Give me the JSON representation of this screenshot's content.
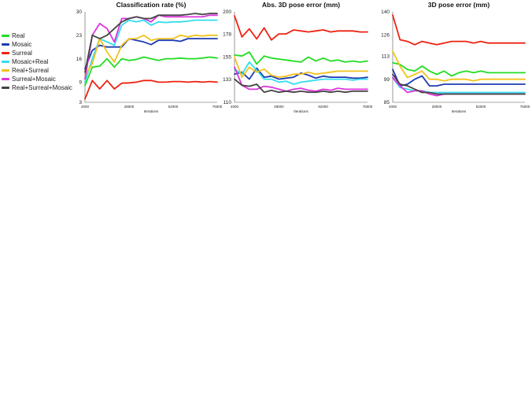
{
  "legend": [
    {
      "name": "Real",
      "color": "#22dd22"
    },
    {
      "name": "Mosaic",
      "color": "#1f3bb3"
    },
    {
      "name": "Surreal",
      "color": "#ee2211"
    },
    {
      "name": "Mosaic+Real",
      "color": "#33ddee"
    },
    {
      "name": "Real+Surreal",
      "color": "#f2c21b"
    },
    {
      "name": "Surreal+Mosaic",
      "color": "#dd33dd"
    },
    {
      "name": "Real+Surreal+Mosaic",
      "color": "#444444"
    }
  ],
  "chart_data": [
    {
      "type": "line",
      "title": "Classification rate (%)",
      "xlabel": "Iterations",
      "ylabel": "",
      "xlim": [
        4000,
        76000
      ],
      "ylim": [
        3,
        30
      ],
      "yticks": [
        3,
        9,
        16,
        23,
        30
      ],
      "xticks": [
        4000,
        28000,
        52000,
        76000
      ],
      "grid": false,
      "x": [
        4000,
        8000,
        12000,
        16000,
        20000,
        24000,
        28000,
        32000,
        36000,
        40000,
        44000,
        48000,
        52000,
        56000,
        60000,
        64000,
        68000,
        72000,
        76000
      ],
      "series": [
        {
          "name": "Real",
          "color": "#22dd22",
          "values": [
            8,
            13.5,
            13.8,
            16,
            13.5,
            16,
            15.5,
            15.8,
            16.5,
            16,
            15.5,
            16,
            16,
            16.2,
            16,
            16,
            16.2,
            16.5,
            16.2
          ]
        },
        {
          "name": "Mosaic",
          "color": "#1f3bb3",
          "values": [
            13,
            18.5,
            20,
            19.5,
            19.5,
            19.5,
            22,
            21.5,
            21,
            20.2,
            21.5,
            21.5,
            21.5,
            21.2,
            22,
            22,
            22,
            22,
            22
          ]
        },
        {
          "name": "Surreal",
          "color": "#ee2211",
          "values": [
            4,
            9.5,
            7,
            9.5,
            7,
            8.7,
            8.8,
            9,
            9.5,
            9.5,
            9,
            9,
            9.2,
            9.2,
            9,
            9.2,
            9,
            9.2,
            9
          ]
        },
        {
          "name": "Mosaic+Real",
          "color": "#33ddee",
          "values": [
            9,
            16,
            22,
            21,
            20,
            26,
            27.5,
            27,
            27.5,
            26,
            27,
            26.8,
            27,
            27,
            27.2,
            27.5,
            27.5,
            27.5,
            27.5
          ]
        },
        {
          "name": "Real+Surreal",
          "color": "#f2c21b",
          "values": [
            11,
            14.5,
            22,
            18,
            15,
            20,
            22,
            22,
            23,
            21.5,
            22,
            22,
            22,
            23,
            22.5,
            23,
            22.8,
            23,
            23
          ]
        },
        {
          "name": "Surreal+Mosaic",
          "color": "#dd33dd",
          "values": [
            10,
            23,
            26.5,
            25,
            21,
            28,
            28,
            28.5,
            28,
            27,
            29,
            28.5,
            28.5,
            28.5,
            28.5,
            28.5,
            28.5,
            29,
            29
          ]
        },
        {
          "name": "Real+Surreal+Mosaic",
          "color": "#444444",
          "values": [
            12,
            23,
            22,
            23,
            25,
            27,
            28,
            28.5,
            28,
            28,
            29,
            29,
            29,
            29,
            29.2,
            29.5,
            29.2,
            29.5,
            29.5
          ]
        }
      ]
    },
    {
      "type": "line",
      "title": "Abs. 3D pose error (mm)",
      "xlabel": "Iterations",
      "ylabel": "",
      "xlim": [
        4000,
        76000
      ],
      "ylim": [
        110,
        200
      ],
      "yticks": [
        110,
        133,
        155,
        178,
        200
      ],
      "xticks": [
        4000,
        28000,
        52000,
        76000
      ],
      "grid": false,
      "x": [
        4000,
        8000,
        12000,
        16000,
        20000,
        24000,
        28000,
        32000,
        36000,
        40000,
        44000,
        48000,
        52000,
        56000,
        60000,
        64000,
        68000,
        72000,
        76000
      ],
      "series": [
        {
          "name": "Real",
          "color": "#22dd22",
          "values": [
            157,
            156,
            160,
            148,
            156,
            154,
            153,
            152,
            151,
            150,
            155,
            151,
            154,
            151,
            152,
            150,
            151,
            150,
            151
          ]
        },
        {
          "name": "Mosaic",
          "color": "#1f3bb3",
          "values": [
            138,
            140,
            133,
            144,
            135,
            136,
            133,
            134,
            135,
            139,
            137,
            134,
            136,
            135,
            135,
            135,
            134,
            134,
            135
          ]
        },
        {
          "name": "Surreal",
          "color": "#ee2211",
          "values": [
            196,
            175,
            183,
            173,
            184,
            172,
            178,
            178,
            182,
            181,
            180,
            181,
            182,
            180,
            181,
            181,
            181,
            180,
            180
          ]
        },
        {
          "name": "Mosaic+Real",
          "color": "#33ddee",
          "values": [
            143,
            138,
            150,
            142,
            133,
            133,
            130,
            131,
            128,
            130,
            131,
            132,
            133,
            133,
            133,
            133,
            132,
            133,
            133
          ]
        },
        {
          "name": "Real+Surreal",
          "color": "#f2c21b",
          "values": [
            155,
            135,
            145,
            140,
            143,
            137,
            135,
            136,
            138,
            138,
            140,
            138,
            139,
            140,
            141,
            141,
            141,
            141,
            141
          ]
        },
        {
          "name": "Surreal+Mosaic",
          "color": "#dd33dd",
          "values": [
            145,
            127,
            123,
            123,
            126,
            125,
            123,
            121,
            123,
            124,
            122,
            121,
            123,
            122,
            124,
            123,
            123,
            123,
            123
          ]
        },
        {
          "name": "Real+Surreal+Mosaic",
          "color": "#444444",
          "values": [
            133,
            127,
            126,
            128,
            120,
            122,
            120,
            121,
            120,
            121,
            120,
            120,
            121,
            120,
            121,
            120,
            121,
            121,
            121
          ]
        }
      ]
    },
    {
      "type": "line",
      "title": "3D pose error (mm)",
      "xlabel": "Iterations",
      "ylabel": "",
      "xlim": [
        4000,
        76000
      ],
      "ylim": [
        85,
        140
      ],
      "yticks": [
        85,
        99,
        113,
        126,
        140
      ],
      "xticks": [
        4000,
        28000,
        52000,
        76000
      ],
      "grid": false,
      "x": [
        4000,
        8000,
        12000,
        16000,
        20000,
        24000,
        28000,
        32000,
        36000,
        40000,
        44000,
        48000,
        52000,
        56000,
        60000,
        64000,
        68000,
        72000,
        76000
      ],
      "series": [
        {
          "name": "Real",
          "color": "#22dd22",
          "values": [
            109,
            108,
            105,
            104,
            107,
            104,
            102,
            104,
            101,
            103,
            104,
            103,
            104,
            103,
            103,
            103,
            103,
            103,
            103
          ]
        },
        {
          "name": "Mosaic",
          "color": "#1f3bb3",
          "values": [
            105,
            95,
            96,
            99,
            101,
            95,
            95,
            96,
            96,
            96,
            96,
            96,
            96,
            96,
            96,
            96,
            96,
            96,
            96
          ]
        },
        {
          "name": "Surreal",
          "color": "#ee2211",
          "values": [
            138,
            123,
            122,
            120,
            122,
            121,
            120,
            121,
            122,
            122,
            122,
            121,
            122,
            121,
            121,
            121,
            121,
            121,
            121
          ]
        },
        {
          "name": "Mosaic+Real",
          "color": "#33ddee",
          "values": [
            100,
            94,
            93,
            92,
            92,
            91,
            91,
            91,
            91,
            91,
            91,
            91,
            91,
            91,
            91,
            91,
            91,
            91,
            91
          ]
        },
        {
          "name": "Real+Surreal",
          "color": "#f2c21b",
          "values": [
            116,
            107,
            100,
            102,
            104,
            99,
            99,
            98,
            99,
            99,
            99,
            98,
            99,
            99,
            99,
            99,
            99,
            99,
            99
          ]
        },
        {
          "name": "Surreal+Mosaic",
          "color": "#dd33dd",
          "values": [
            100,
            95,
            91,
            92,
            92,
            90,
            89,
            90,
            90,
            90,
            90,
            90,
            90,
            90,
            90,
            90,
            90,
            90,
            90
          ]
        },
        {
          "name": "Real+Surreal+Mosaic",
          "color": "#444444",
          "values": [
            102,
            96,
            95,
            93,
            91,
            91,
            90,
            90,
            90,
            90,
            90,
            90,
            90,
            90,
            90,
            90,
            90,
            90,
            90
          ]
        }
      ]
    }
  ]
}
